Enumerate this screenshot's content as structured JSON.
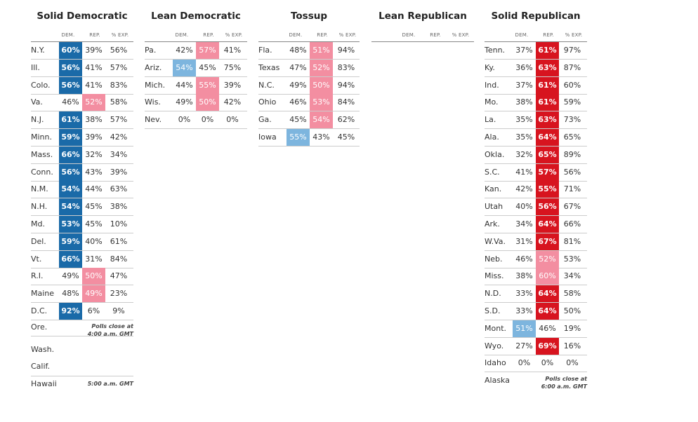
{
  "headers": {
    "dem": "DEM.",
    "rep": "REP.",
    "exp": "% EXP."
  },
  "solid_democratic": {
    "title": "Solid Democratic",
    "rows": [
      {
        "state": "N.Y.",
        "dem": "60%",
        "rep": "39%",
        "exp": "56%"
      },
      {
        "state": "Ill.",
        "dem": "56%",
        "rep": "41%",
        "exp": "57%"
      },
      {
        "state": "Colo.",
        "dem": "56%",
        "rep": "41%",
        "exp": "83%"
      },
      {
        "state": "Va.",
        "dem": "46%",
        "rep": "52%",
        "exp": "58%"
      },
      {
        "state": "N.J.",
        "dem": "61%",
        "rep": "38%",
        "exp": "57%"
      },
      {
        "state": "Minn.",
        "dem": "59%",
        "rep": "39%",
        "exp": "42%"
      },
      {
        "state": "Mass.",
        "dem": "66%",
        "rep": "32%",
        "exp": "34%"
      },
      {
        "state": "Conn.",
        "dem": "56%",
        "rep": "43%",
        "exp": "39%"
      },
      {
        "state": "N.M.",
        "dem": "54%",
        "rep": "44%",
        "exp": "63%"
      },
      {
        "state": "N.H.",
        "dem": "54%",
        "rep": "45%",
        "exp": "38%"
      },
      {
        "state": "Md.",
        "dem": "53%",
        "rep": "45%",
        "exp": "10%"
      },
      {
        "state": "Del.",
        "dem": "59%",
        "rep": "40%",
        "exp": "61%"
      },
      {
        "state": "Vt.",
        "dem": "66%",
        "rep": "31%",
        "exp": "84%"
      },
      {
        "state": "R.I.",
        "dem": "49%",
        "rep": "50%",
        "exp": "47%"
      },
      {
        "state": "Maine",
        "dem": "48%",
        "rep": "49%",
        "exp": "23%"
      },
      {
        "state": "D.C.",
        "dem": "92%",
        "rep": "6%",
        "exp": "9%"
      }
    ],
    "pending": [
      "Ore.",
      "Wash.",
      "Calif.",
      "Hawaii"
    ],
    "note1_line1": "Polls close at",
    "note1_line2": "4:00 a.m. GMT",
    "note2": "5:00 a.m. GMT"
  },
  "lean_democratic": {
    "title": "Lean Democratic",
    "rows": [
      {
        "state": "Pa.",
        "dem": "42%",
        "rep": "57%",
        "exp": "41%"
      },
      {
        "state": "Ariz.",
        "dem": "54%",
        "rep": "45%",
        "exp": "75%"
      },
      {
        "state": "Mich.",
        "dem": "44%",
        "rep": "55%",
        "exp": "39%"
      },
      {
        "state": "Wis.",
        "dem": "49%",
        "rep": "50%",
        "exp": "42%"
      },
      {
        "state": "Nev.",
        "dem": "0%",
        "rep": "0%",
        "exp": "0%"
      }
    ]
  },
  "tossup": {
    "title": "Tossup",
    "rows": [
      {
        "state": "Fla.",
        "dem": "48%",
        "rep": "51%",
        "exp": "94%"
      },
      {
        "state": "Texas",
        "dem": "47%",
        "rep": "52%",
        "exp": "83%"
      },
      {
        "state": "N.C.",
        "dem": "49%",
        "rep": "50%",
        "exp": "94%"
      },
      {
        "state": "Ohio",
        "dem": "46%",
        "rep": "53%",
        "exp": "84%"
      },
      {
        "state": "Ga.",
        "dem": "45%",
        "rep": "54%",
        "exp": "62%"
      },
      {
        "state": "Iowa",
        "dem": "55%",
        "rep": "43%",
        "exp": "45%"
      }
    ]
  },
  "lean_republican": {
    "title": "Lean Republican",
    "rows": []
  },
  "solid_republican": {
    "title": "Solid Republican",
    "rows": [
      {
        "state": "Tenn.",
        "dem": "37%",
        "rep": "61%",
        "exp": "97%"
      },
      {
        "state": "Ky.",
        "dem": "36%",
        "rep": "63%",
        "exp": "87%"
      },
      {
        "state": "Ind.",
        "dem": "37%",
        "rep": "61%",
        "exp": "60%"
      },
      {
        "state": "Mo.",
        "dem": "38%",
        "rep": "61%",
        "exp": "59%"
      },
      {
        "state": "La.",
        "dem": "35%",
        "rep": "63%",
        "exp": "73%"
      },
      {
        "state": "Ala.",
        "dem": "35%",
        "rep": "64%",
        "exp": "65%"
      },
      {
        "state": "Okla.",
        "dem": "32%",
        "rep": "65%",
        "exp": "89%"
      },
      {
        "state": "S.C.",
        "dem": "41%",
        "rep": "57%",
        "exp": "56%"
      },
      {
        "state": "Kan.",
        "dem": "42%",
        "rep": "55%",
        "exp": "71%"
      },
      {
        "state": "Utah",
        "dem": "40%",
        "rep": "56%",
        "exp": "67%"
      },
      {
        "state": "Ark.",
        "dem": "34%",
        "rep": "64%",
        "exp": "66%"
      },
      {
        "state": "W.Va.",
        "dem": "31%",
        "rep": "67%",
        "exp": "81%"
      },
      {
        "state": "Neb.",
        "dem": "46%",
        "rep": "52%",
        "exp": "53%"
      },
      {
        "state": "Miss.",
        "dem": "38%",
        "rep": "60%",
        "exp": "34%"
      },
      {
        "state": "N.D.",
        "dem": "33%",
        "rep": "64%",
        "exp": "58%"
      },
      {
        "state": "S.D.",
        "dem": "33%",
        "rep": "64%",
        "exp": "50%"
      },
      {
        "state": "Mont.",
        "dem": "51%",
        "rep": "46%",
        "exp": "19%"
      },
      {
        "state": "Wyo.",
        "dem": "27%",
        "rep": "69%",
        "exp": "16%"
      },
      {
        "state": "Idaho",
        "dem": "0%",
        "rep": "0%",
        "exp": "0%"
      }
    ],
    "pending": [
      "Alaska"
    ],
    "note_line1": "Polls close at",
    "note_line2": "6:00 a.m. GMT"
  }
}
